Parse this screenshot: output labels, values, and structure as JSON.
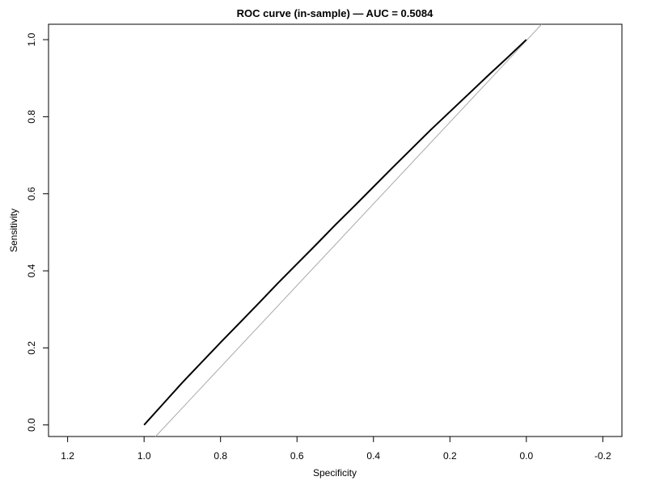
{
  "chart_data": {
    "type": "line",
    "title": "ROC curve (in-sample) — AUC = 0.5084",
    "xlabel": "Specificity",
    "ylabel": "Sensitivity",
    "xlim": [
      1.25,
      -0.25
    ],
    "ylim": [
      -0.03,
      1.04
    ],
    "x_reversed": true,
    "grid": false,
    "x_ticks": [
      1.2,
      1.0,
      0.8,
      0.6,
      0.4,
      0.2,
      0.0,
      -0.2
    ],
    "x_tick_labels": [
      "1.2",
      "1.0",
      "0.8",
      "0.6",
      "0.4",
      "0.2",
      "0.0",
      "-0.2"
    ],
    "y_ticks": [
      0.0,
      0.2,
      0.4,
      0.6,
      0.8,
      1.0
    ],
    "y_tick_labels": [
      "0.0",
      "0.2",
      "0.4",
      "0.6",
      "0.8",
      "1.0"
    ],
    "reference_line": {
      "description": "diagonal sensitivity = 1 - specificity",
      "color": "#aaaaaa"
    },
    "series": [
      {
        "color": "#000000",
        "specificity": [
          1.0,
          0.95,
          0.9,
          0.85,
          0.8,
          0.75,
          0.7,
          0.65,
          0.6,
          0.55,
          0.5,
          0.45,
          0.4,
          0.35,
          0.3,
          0.25,
          0.2,
          0.15,
          0.1,
          0.05,
          0.0
        ],
        "sensitivity": [
          0.0,
          0.055,
          0.11,
          0.162,
          0.214,
          0.265,
          0.316,
          0.368,
          0.418,
          0.468,
          0.519,
          0.568,
          0.618,
          0.668,
          0.717,
          0.766,
          0.813,
          0.86,
          0.907,
          0.953,
          1.0
        ]
      }
    ]
  }
}
